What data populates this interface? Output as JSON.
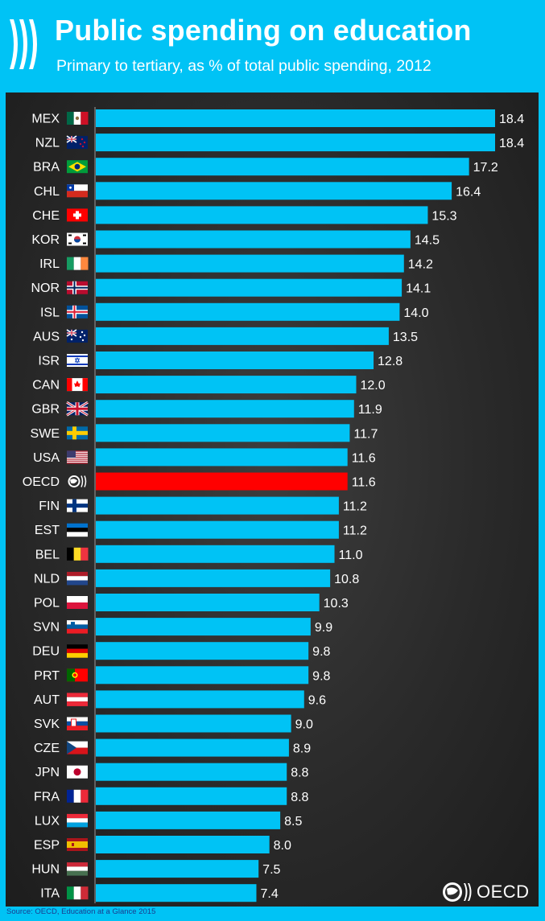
{
  "header": {
    "title": "Public spending on education",
    "subtitle": "Primary to tertiary, as % of total public spending, 2012"
  },
  "footer": {
    "source": "Source: OECD, Education at a Glance 2015",
    "logo_text": "OECD"
  },
  "colors": {
    "background": "#00c3f5",
    "board": "#2b2b2b",
    "bar": "#00c3f5",
    "highlight_bar": "#ff0000",
    "text": "#ffffff"
  },
  "chart_data": {
    "type": "bar",
    "orientation": "horizontal",
    "title": "Public spending on education",
    "subtitle": "Primary to tertiary, as % of total public spending, 2012",
    "xlabel": "",
    "ylabel": "",
    "categories": [
      "MEX",
      "NZL",
      "BRA",
      "CHL",
      "CHE",
      "KOR",
      "IRL",
      "NOR",
      "ISL",
      "AUS",
      "ISR",
      "CAN",
      "GBR",
      "SWE",
      "USA",
      "OECD",
      "FIN",
      "EST",
      "BEL",
      "NLD",
      "POL",
      "SVN",
      "DEU",
      "PRT",
      "AUT",
      "SVK",
      "CZE",
      "JPN",
      "FRA",
      "LUX",
      "ESP",
      "HUN",
      "ITA"
    ],
    "values": [
      18.4,
      18.4,
      17.2,
      16.4,
      15.3,
      14.5,
      14.2,
      14.1,
      14.0,
      13.5,
      12.8,
      12.0,
      11.9,
      11.7,
      11.6,
      11.6,
      11.2,
      11.2,
      11.0,
      10.8,
      10.3,
      9.9,
      9.8,
      9.8,
      9.6,
      9.0,
      8.9,
      8.8,
      8.8,
      8.5,
      8.0,
      7.5,
      7.4
    ],
    "value_labels": [
      "18.4",
      "18.4",
      "17.2",
      "16.4",
      "15.3",
      "14.5",
      "14.2",
      "14.1",
      "14.0",
      "13.5",
      "12.8",
      "12.0",
      "11.9",
      "11.7",
      "11.6",
      "11.6",
      "11.2",
      "11.2",
      "11.0",
      "10.8",
      "10.3",
      "9.9",
      "9.8",
      "9.8",
      "9.6",
      "9.0",
      "8.9",
      "8.8",
      "8.8",
      "8.5",
      "8.0",
      "7.5",
      "7.4"
    ],
    "highlight": "OECD",
    "xlim": [
      0,
      18.4
    ],
    "grid": false,
    "legend": "none"
  }
}
